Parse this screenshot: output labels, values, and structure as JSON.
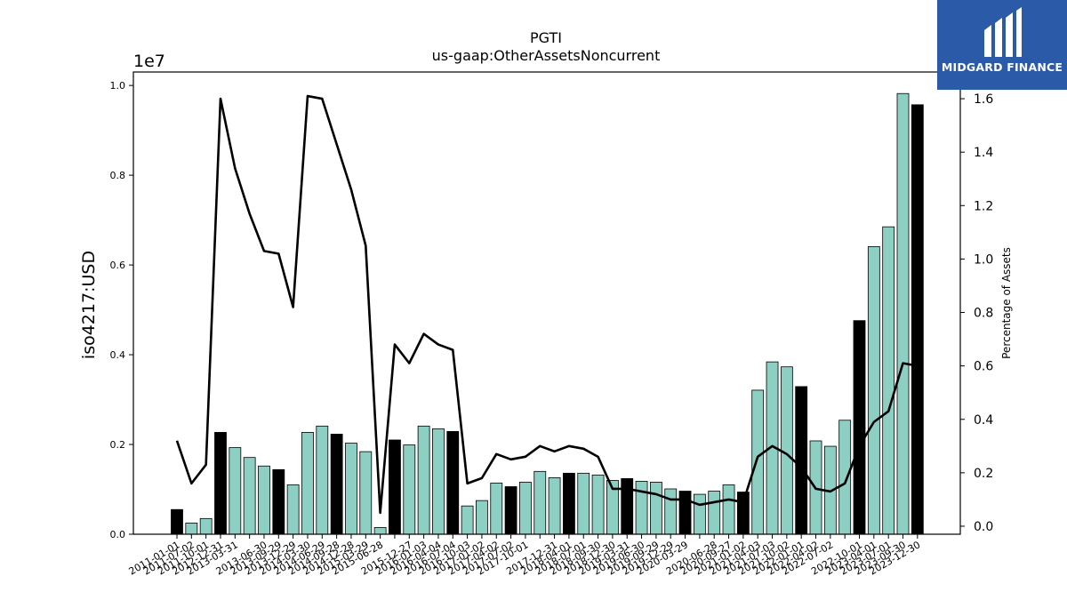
{
  "chart_data": {
    "type": "bar",
    "title": "PGTI",
    "subtitle": "us-gaap:OtherAssetsNoncurrent",
    "ylabel": "iso4217:USD",
    "y2label": "Percentage of Assets",
    "y_offset_label": "1e7",
    "ylim": [
      0,
      10300000
    ],
    "y2lim": [
      -0.03,
      1.7
    ],
    "yticks": [
      0.0,
      0.2,
      0.4,
      0.6,
      0.8,
      1.0
    ],
    "y2ticks": [
      0.0,
      0.2,
      0.4,
      0.6,
      0.8,
      1.0,
      1.2,
      1.4,
      1.6
    ],
    "grid": false,
    "bar_color": "#8ecfc4",
    "highlight_color": "#000000",
    "line_color": "#000000",
    "tick_labels_visible": [
      "2011-01-01",
      "2011-07-02",
      "2011-10-01",
      "2012-12-31",
      "2013-03-31",
      "2013-06-30",
      "2013-09-29",
      "2013-12-29",
      "2014-03-30",
      "2014-06-29",
      "2014-09-28",
      "2014-12-28",
      "2015-03-29",
      "2015-06-28",
      "2015-12-27",
      "2016-01-03",
      "2016-04-04",
      "2016-07-04",
      "2016-10-03",
      "2017-01-02",
      "2017-04-02",
      "2017-07-02",
      "2017-10-01",
      "2017-12-31",
      "2018-04-01",
      "2018-07-01",
      "2018-09-30",
      "2018-12-30",
      "2019-03-31",
      "2019-06-30",
      "2019-09-29",
      "2019-12-29",
      "2020-03-29",
      "2020-06-28",
      "2020-09-27",
      "2021-01-02",
      "2021-04-03",
      "2021-07-03",
      "2021-10-02",
      "2022-01-01",
      "2022-04-02",
      "2022-07-02",
      "2022-10-01",
      "2023-04-01",
      "2023-07-01",
      "2023-09-30",
      "2023-12-30"
    ],
    "series": [
      {
        "type": "bar",
        "values": [
          550000,
          250000,
          350000,
          2270000,
          1930000,
          1710000,
          1520000,
          1440000,
          1100000,
          2270000,
          2410000,
          2230000,
          2030000,
          1840000,
          150000,
          2100000,
          1990000,
          2410000,
          2350000,
          2290000,
          630000,
          750000,
          1140000,
          1060000,
          1160000,
          1400000,
          1260000,
          1360000,
          1360000,
          1320000,
          1200000,
          1240000,
          1180000,
          1160000,
          1010000,
          960000,
          890000,
          960000,
          1100000,
          940000,
          3210000,
          3840000,
          3730000,
          3290000,
          2080000,
          1960000,
          2540000,
          4760000,
          6410000,
          6850000,
          9820000,
          9570000
        ],
        "highlight": [
          1,
          0,
          0,
          1,
          0,
          0,
          0,
          1,
          0,
          0,
          0,
          1,
          0,
          0,
          0,
          1,
          0,
          0,
          0,
          1,
          0,
          0,
          0,
          1,
          0,
          0,
          0,
          1,
          0,
          0,
          0,
          1,
          0,
          0,
          0,
          1,
          0,
          0,
          0,
          1,
          0,
          0,
          0,
          1,
          0,
          0,
          0,
          1,
          0,
          0,
          0,
          1
        ]
      },
      {
        "type": "line",
        "axis": "right",
        "values": [
          0.32,
          0.16,
          0.23,
          1.6,
          1.34,
          1.17,
          1.03,
          1.02,
          0.82,
          1.61,
          1.6,
          1.43,
          1.26,
          1.05,
          0.05,
          0.68,
          0.61,
          0.72,
          0.68,
          0.66,
          0.16,
          0.18,
          0.27,
          0.25,
          0.26,
          0.3,
          0.28,
          0.3,
          0.29,
          0.26,
          0.14,
          0.14,
          0.13,
          0.12,
          0.1,
          0.1,
          0.08,
          0.09,
          0.1,
          0.09,
          0.26,
          0.3,
          0.27,
          0.22,
          0.14,
          0.13,
          0.16,
          0.3,
          0.39,
          0.43,
          0.61,
          0.6
        ]
      }
    ]
  },
  "logo": {
    "text": "MIDGARD FINANCE",
    "color": "#2b5ba8"
  }
}
